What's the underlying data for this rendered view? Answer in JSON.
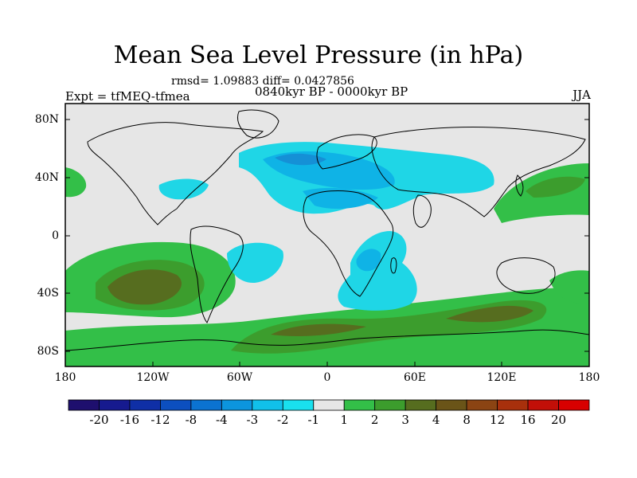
{
  "title": "Mean Sea Level Pressure (in hPa)",
  "stats": "rmsd= 1.09883 diff= 0.0427856",
  "period": "0840kyr BP - 0000kyr BP",
  "experiment": "Expt = tfMEQ-tfmea",
  "season": "JJA",
  "y_ticks": [
    "80N",
    "40N",
    "0",
    "40S",
    "80S"
  ],
  "x_ticks": [
    "180",
    "120W",
    "60W",
    "0",
    "60E",
    "120E",
    "180"
  ],
  "colorbar": {
    "labels": [
      "-20",
      "-16",
      "-12",
      "-8",
      "-4",
      "-3",
      "-2",
      "-1",
      "1",
      "2",
      "3",
      "4",
      "8",
      "12",
      "16",
      "20"
    ],
    "colors": [
      "#1e0f6e",
      "#161a8f",
      "#0f2fa6",
      "#0c4fbf",
      "#0b73d1",
      "#0c95de",
      "#11c0ea",
      "#19e0ee",
      "#e6e6e6",
      "#33bf48",
      "#3c9d2d",
      "#566d1f",
      "#6a5418",
      "#8b4413",
      "#a8300c",
      "#c20f08",
      "#d80000"
    ]
  },
  "palette": {
    "background_field": "#e6e6e6",
    "neg_light": "#1fd6e6",
    "neg_mid": "#0fb3e6",
    "neg_dark": "#1590d6",
    "pos_light": "#33bf48",
    "pos_mid": "#3c9d2d",
    "pos_dark": "#566d1f"
  }
}
